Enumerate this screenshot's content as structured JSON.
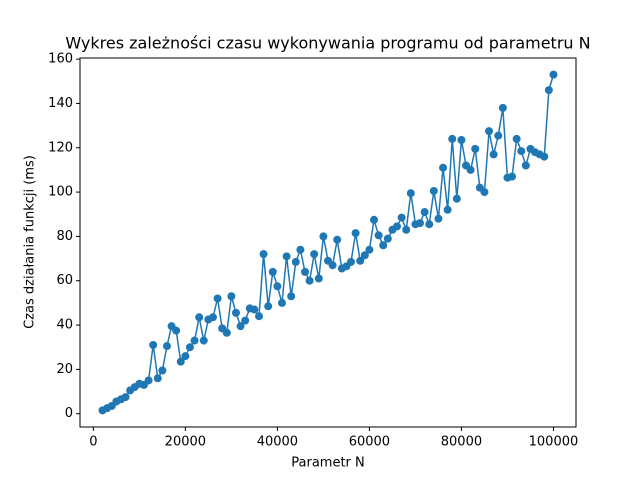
{
  "chart_data": {
    "type": "line",
    "title": "Wykres zależności czasu wykonywania programu od parametru N",
    "x_label": "Parametr N",
    "y_label": "Czas działania funkcji (ms)",
    "x": [
      2000,
      3000,
      4000,
      5000,
      6000,
      7000,
      8000,
      9000,
      10000,
      11000,
      12000,
      13000,
      14000,
      15000,
      16000,
      17000,
      18000,
      19000,
      20000,
      21000,
      22000,
      23000,
      24000,
      25000,
      26000,
      27000,
      28000,
      29000,
      30000,
      31000,
      32000,
      33000,
      34000,
      35000,
      36000,
      37000,
      38000,
      39000,
      40000,
      41000,
      42000,
      43000,
      44000,
      45000,
      46000,
      47000,
      48000,
      49000,
      50000,
      51000,
      52000,
      53000,
      54000,
      55000,
      56000,
      57000,
      58000,
      59000,
      60000,
      61000,
      62000,
      63000,
      64000,
      65000,
      66000,
      67000,
      68000,
      69000,
      70000,
      71000,
      72000,
      73000,
      74000,
      75000,
      76000,
      77000,
      78000,
      79000,
      80000,
      81000,
      82000,
      83000,
      84000,
      85000,
      86000,
      87000,
      88000,
      89000,
      90000,
      91000,
      92000,
      93000,
      94000,
      95000,
      96000,
      97000,
      98000,
      99000,
      100000
    ],
    "series": [
      {
        "color": "#1f77b4",
        "values": [
          1.5,
          2.5,
          3.5,
          5.5,
          6.5,
          7.5,
          10.5,
          12,
          13.5,
          13,
          15,
          31,
          16,
          19.5,
          30.5,
          39.5,
          37.5,
          23.5,
          26,
          30,
          33,
          43.5,
          33,
          42.5,
          43.5,
          52,
          38.5,
          36.5,
          53,
          45.5,
          39.5,
          42,
          47.5,
          47,
          44,
          72,
          48.5,
          64,
          57.5,
          50,
          71,
          53,
          68.5,
          74,
          64,
          60,
          72,
          61,
          80,
          69,
          67,
          78.5,
          65.5,
          66.5,
          68.5,
          81.5,
          69,
          71.5,
          74,
          87.5,
          80.5,
          76,
          79,
          83,
          84.5,
          88.5,
          83,
          99.5,
          85.5,
          86,
          91,
          85.5,
          100.5,
          88,
          111,
          92,
          124,
          97,
          123.5,
          112,
          110,
          119.5,
          102,
          100,
          127.5,
          117,
          125.5,
          138,
          106.5,
          107,
          124,
          118.5,
          112,
          119.5,
          118,
          117,
          116,
          146,
          153
        ]
      }
    ],
    "xlim": [
      -2900,
      104900
    ],
    "ylim": [
      -6,
      160.5
    ],
    "xticks": [
      0,
      20000,
      40000,
      60000,
      80000,
      100000
    ],
    "yticks": [
      0,
      20,
      40,
      60,
      80,
      100,
      120,
      140,
      160
    ]
  }
}
